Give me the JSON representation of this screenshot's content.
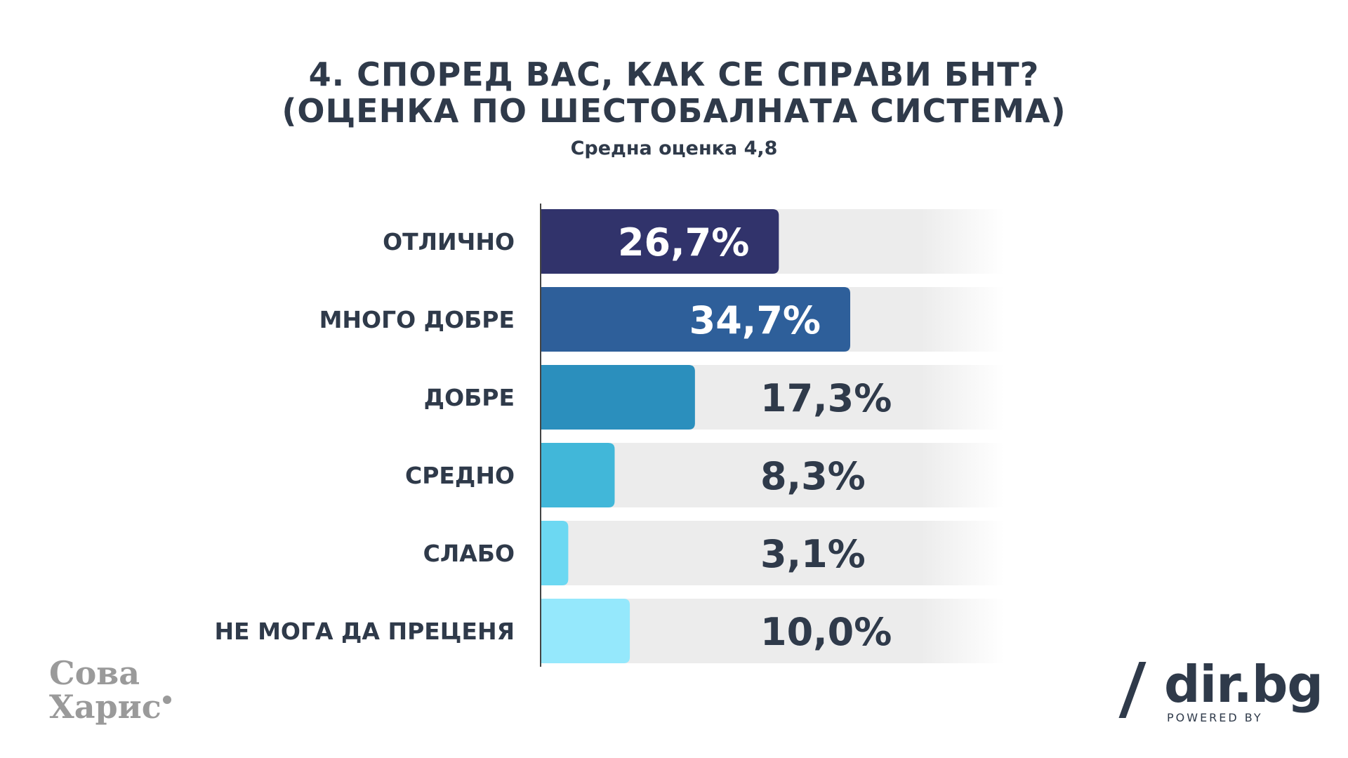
{
  "chart_data": {
    "type": "bar",
    "orientation": "horizontal",
    "title": [
      "4. СПОРЕД ВАС, КАК СЕ СПРАВИ БНТ?",
      "(ОЦЕНКА ПО ШЕСТОБАЛНАТА СИСТЕМА)"
    ],
    "subtitle": "Средна оценка 4,8",
    "categories": [
      "ОТЛИЧНО",
      "МНОГО ДОБРЕ",
      "ДОБРЕ",
      "СРЕДНО",
      "СЛАБО",
      "НЕ МОГА ДА ПРЕЦЕНЯ"
    ],
    "values": [
      26.7,
      34.7,
      17.3,
      8.3,
      3.1,
      10.0
    ],
    "value_labels": [
      "26,7%",
      "34,7%",
      "17,3%",
      "8,3%",
      "3,1%",
      "10,0%"
    ],
    "bar_colors": [
      "#31336b",
      "#2e5f9a",
      "#2b8fbd",
      "#41b7d9",
      "#6cd8f2",
      "#95e8fc"
    ],
    "value_label_colors": [
      "#ffffff",
      "#ffffff",
      "#2f3a4a",
      "#2f3a4a",
      "#2f3a4a",
      "#2f3a4a"
    ],
    "xlim": [
      0,
      40
    ],
    "grid": false,
    "legend": "none"
  },
  "logos": {
    "sova_line1": "Сова",
    "sova_line2": "Харис",
    "dir_text": "dir.bg",
    "dir_powered": "POWERED BY"
  },
  "colors": {
    "text": "#2f3a4a",
    "track": "#ececec",
    "logo_grey": "#9a9a9a"
  }
}
